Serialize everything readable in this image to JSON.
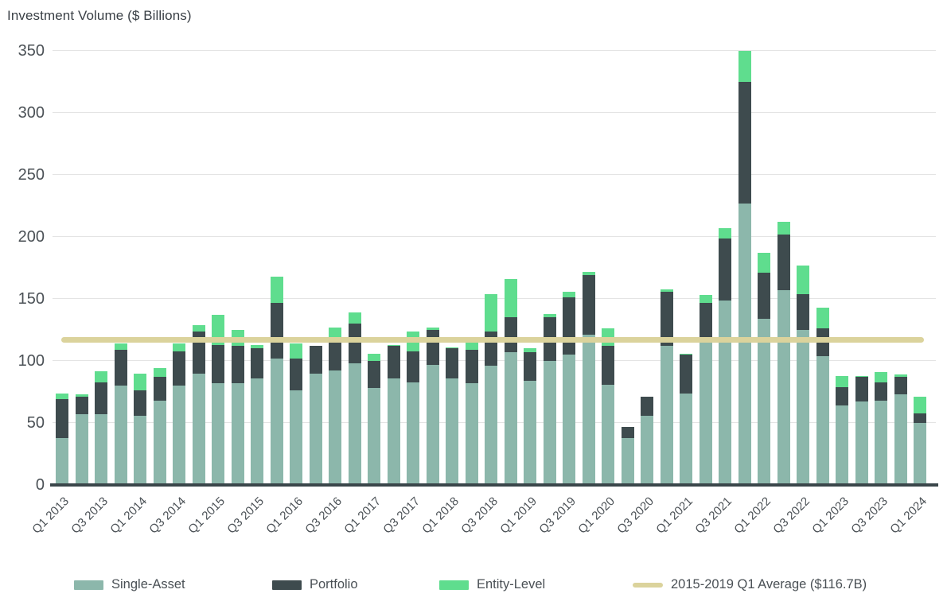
{
  "title": "Investment Volume ($ Billions)",
  "colors": {
    "single_asset": "#8cb7ab",
    "portfolio": "#3e4b4e",
    "entity_level": "#5fdd8e",
    "average_line": "#dbd39c",
    "gridline": "#e4e4e4",
    "baseline": "#3a464a",
    "axis_text": "#4b5156"
  },
  "legend": [
    {
      "label": "Single-Asset",
      "swatch": "box",
      "color_key": "single_asset"
    },
    {
      "label": "Portfolio",
      "swatch": "box",
      "color_key": "portfolio"
    },
    {
      "label": "Entity-Level",
      "swatch": "box",
      "color_key": "entity_level"
    },
    {
      "label": "2015-2019 Q1 Average ($116.7B)",
      "swatch": "line",
      "color_key": "average_line"
    }
  ],
  "chart_data": {
    "type": "bar",
    "subtype": "stacked",
    "title": "Investment Volume ($ Billions)",
    "ylabel": "Investment Volume ($ Billions)",
    "xlabel": "",
    "ylim": [
      0,
      350
    ],
    "yticks": [
      0,
      50,
      100,
      150,
      200,
      250,
      300,
      350
    ],
    "grid": true,
    "legend_position": "bottom",
    "categories": [
      "Q1 2013",
      "Q2 2013",
      "Q3 2013",
      "Q4 2013",
      "Q1 2014",
      "Q2 2014",
      "Q3 2014",
      "Q4 2014",
      "Q1 2015",
      "Q2 2015",
      "Q3 2015",
      "Q4 2015",
      "Q1 2016",
      "Q2 2016",
      "Q3 2016",
      "Q4 2016",
      "Q1 2017",
      "Q2 2017",
      "Q3 2017",
      "Q4 2017",
      "Q1 2018",
      "Q2 2018",
      "Q3 2018",
      "Q4 2018",
      "Q1 2019",
      "Q2 2019",
      "Q3 2019",
      "Q4 2019",
      "Q1 2020",
      "Q2 2020",
      "Q3 2020",
      "Q4 2020",
      "Q1 2021",
      "Q2 2021",
      "Q3 2021",
      "Q4 2021",
      "Q1 2022",
      "Q2 2022",
      "Q3 2022",
      "Q4 2022",
      "Q1 2023",
      "Q2 2023",
      "Q3 2023",
      "Q4 2023",
      "Q1 2024"
    ],
    "x_tick_labels": [
      "Q1 2013",
      "Q3 2013",
      "Q1 2014",
      "Q3 2014",
      "Q1 2015",
      "Q3 2015",
      "Q1 2016",
      "Q3 2016",
      "Q1 2017",
      "Q3 2017",
      "Q1 2018",
      "Q3 2018",
      "Q1 2019",
      "Q3 2019",
      "Q1 2020",
      "Q3 2020",
      "Q1 2021",
      "Q3 2021",
      "Q1 2022",
      "Q3 2022",
      "Q1 2023",
      "Q3 2023",
      "Q1 2024"
    ],
    "x_tick_every": 2,
    "series": [
      {
        "name": "Single-Asset",
        "color_key": "single_asset",
        "values": [
          38,
          57,
          57,
          80,
          56,
          68,
          80,
          90,
          82,
          82,
          86,
          102,
          76,
          90,
          92,
          98,
          78,
          86,
          83,
          97,
          86,
          82,
          96,
          107,
          84,
          100,
          105,
          121,
          81,
          38,
          56,
          112,
          74,
          115,
          149,
          227,
          134,
          157,
          125,
          104,
          64,
          67,
          68,
          73,
          50
        ]
      },
      {
        "name": "Portfolio",
        "color_key": "portfolio",
        "values": [
          31,
          14,
          26,
          29,
          20,
          19,
          28,
          34,
          31,
          30,
          24,
          45,
          26,
          22,
          24,
          32,
          22,
          26,
          25,
          28,
          24,
          27,
          28,
          28,
          23,
          35,
          46,
          48,
          31,
          9,
          15,
          44,
          31,
          32,
          50,
          98,
          37,
          45,
          29,
          22,
          15,
          20,
          15,
          14,
          8
        ]
      },
      {
        "name": "Entity-Level",
        "color_key": "entity_level",
        "values": [
          5,
          2,
          9,
          5,
          14,
          7,
          6,
          5,
          24,
          13,
          3,
          21,
          12,
          0,
          11,
          9,
          6,
          1,
          16,
          2,
          1,
          9,
          30,
          31,
          3,
          3,
          5,
          3,
          14,
          0,
          0,
          2,
          1,
          6,
          8,
          25,
          16,
          10,
          23,
          17,
          9,
          1,
          8,
          2,
          13
        ]
      }
    ],
    "reference_line": {
      "label": "2015-2019 Q1 Average ($116.7B)",
      "value": 116.7,
      "color_key": "average_line"
    }
  }
}
